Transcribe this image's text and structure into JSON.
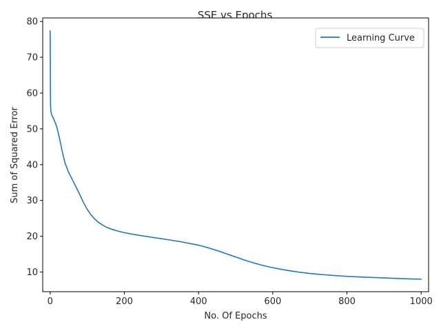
{
  "chart_data": {
    "type": "line",
    "title": "SSE vs Epochs",
    "xlabel": "No. Of Epochs",
    "ylabel": "Sum of Squared Error",
    "xlim": [
      -20,
      1020
    ],
    "ylim": [
      4.5,
      81
    ],
    "xticks": [
      0,
      200,
      400,
      600,
      800,
      1000
    ],
    "yticks": [
      10,
      20,
      30,
      40,
      50,
      60,
      70,
      80
    ],
    "grid": false,
    "legend_position": "top-right",
    "series": [
      {
        "name": "Learning Curve",
        "color": "#1f77b4",
        "x": [
          0,
          1,
          2,
          3,
          5,
          8,
          12,
          18,
          25,
          32,
          40,
          50,
          60,
          70,
          80,
          90,
          100,
          110,
          120,
          130,
          140,
          150,
          165,
          180,
          200,
          225,
          250,
          275,
          300,
          325,
          350,
          375,
          400,
          425,
          450,
          475,
          500,
          525,
          550,
          575,
          600,
          625,
          650,
          675,
          700,
          725,
          750,
          775,
          800,
          825,
          850,
          875,
          900,
          925,
          950,
          975,
          1000
        ],
        "y": [
          77.4,
          57.0,
          55.0,
          54.3,
          53.7,
          53.1,
          52.2,
          50.5,
          47.5,
          44.0,
          40.5,
          37.8,
          35.8,
          33.7,
          31.6,
          29.4,
          27.5,
          26.0,
          24.8,
          23.9,
          23.2,
          22.6,
          22.0,
          21.5,
          21.0,
          20.5,
          20.1,
          19.7,
          19.3,
          18.9,
          18.5,
          18.0,
          17.5,
          16.8,
          16.0,
          15.1,
          14.2,
          13.3,
          12.5,
          11.8,
          11.2,
          10.7,
          10.3,
          9.9,
          9.6,
          9.35,
          9.15,
          8.95,
          8.8,
          8.65,
          8.55,
          8.45,
          8.35,
          8.25,
          8.15,
          8.05,
          8.0
        ]
      }
    ]
  }
}
